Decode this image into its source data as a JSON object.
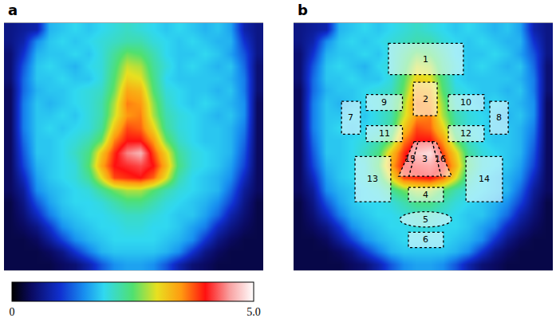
{
  "chart_data": {
    "type": "heatmap",
    "panels": [
      "a",
      "b"
    ],
    "tick_labels": false,
    "xlim": [
      0,
      100
    ],
    "ylim": [
      0,
      100
    ],
    "x": [
      2.5,
      7.5,
      12.5,
      17.5,
      22.5,
      27.5,
      32.5,
      37.5,
      42.5,
      47.5,
      52.5,
      57.5,
      62.5,
      67.5,
      72.5,
      77.5,
      82.5,
      87.5,
      92.5,
      97.5
    ],
    "y": [
      2.5,
      7.5,
      12.5,
      17.5,
      22.5,
      27.5,
      32.5,
      37.5,
      42.5,
      47.5,
      52.5,
      57.5,
      62.5,
      67.5,
      72.5,
      77.5,
      82.5,
      87.5,
      92.5,
      97.5
    ],
    "cells": [
      [
        0.6,
        0.7,
        0.8,
        1.7,
        1.8,
        1.9,
        1.8,
        1.9,
        2.0,
        2.1,
        2.0,
        1.9,
        1.8,
        1.9,
        1.8,
        1.7,
        1.8,
        1.6,
        0.8,
        0.6
      ],
      [
        0.6,
        0.8,
        1.5,
        1.8,
        1.9,
        1.8,
        1.9,
        2.0,
        2.1,
        2.2,
        2.2,
        2.0,
        1.9,
        1.8,
        1.9,
        1.8,
        1.7,
        1.7,
        1.0,
        0.6
      ],
      [
        0.5,
        1.0,
        1.7,
        1.8,
        1.8,
        1.9,
        1.8,
        2.0,
        2.3,
        2.6,
        2.5,
        2.2,
        1.9,
        1.8,
        1.8,
        1.9,
        1.8,
        1.6,
        1.2,
        0.6
      ],
      [
        0.5,
        1.2,
        1.8,
        1.9,
        1.8,
        1.7,
        1.9,
        2.0,
        2.4,
        2.9,
        2.8,
        2.3,
        2.0,
        1.8,
        1.9,
        1.8,
        1.7,
        1.8,
        1.3,
        0.5
      ],
      [
        0.5,
        1.3,
        1.8,
        1.8,
        1.9,
        1.8,
        1.8,
        2.0,
        2.5,
        3.1,
        3.0,
        2.4,
        1.9,
        1.8,
        1.8,
        1.8,
        1.8,
        1.7,
        1.4,
        0.5
      ],
      [
        0.4,
        1.3,
        1.7,
        1.8,
        1.8,
        1.9,
        2.0,
        2.1,
        2.6,
        3.4,
        3.3,
        2.5,
        2.0,
        1.9,
        1.8,
        1.8,
        1.7,
        1.8,
        1.4,
        0.5
      ],
      [
        0.4,
        1.4,
        1.8,
        1.7,
        1.8,
        1.9,
        2.0,
        2.2,
        2.8,
        3.6,
        3.5,
        2.7,
        2.1,
        1.9,
        1.8,
        1.9,
        1.8,
        1.7,
        1.5,
        0.4
      ],
      [
        0.4,
        1.4,
        1.8,
        1.8,
        1.9,
        1.8,
        2.0,
        2.2,
        2.9,
        3.5,
        3.6,
        2.8,
        2.2,
        2.0,
        1.9,
        1.8,
        1.7,
        1.8,
        1.5,
        0.4
      ],
      [
        0.4,
        1.4,
        1.8,
        1.9,
        1.8,
        1.9,
        2.0,
        2.3,
        3.2,
        3.8,
        3.7,
        3.1,
        2.3,
        2.0,
        1.9,
        1.8,
        1.8,
        1.7,
        1.4,
        0.4
      ],
      [
        0.4,
        1.3,
        1.8,
        1.8,
        1.9,
        2.0,
        2.2,
        2.6,
        3.6,
        4.0,
        4.0,
        3.5,
        2.6,
        2.1,
        1.9,
        1.8,
        1.8,
        1.7,
        1.3,
        0.4
      ],
      [
        0.4,
        1.2,
        1.8,
        1.8,
        1.9,
        2.1,
        2.4,
        3.2,
        3.9,
        4.4,
        4.6,
        3.8,
        3.1,
        2.3,
        2.0,
        1.9,
        1.8,
        1.7,
        1.2,
        0.4
      ],
      [
        0.4,
        1.1,
        1.7,
        1.8,
        1.9,
        2.0,
        2.5,
        3.4,
        4.0,
        4.1,
        4.2,
        4.0,
        3.3,
        2.4,
        2.0,
        1.9,
        1.8,
        1.6,
        1.1,
        0.4
      ],
      [
        0.4,
        0.9,
        1.6,
        1.8,
        1.9,
        2.0,
        2.3,
        3.0,
        3.8,
        3.9,
        4.0,
        3.7,
        3.0,
        2.2,
        1.9,
        1.8,
        1.7,
        1.5,
        0.9,
        0.4
      ],
      [
        0.4,
        0.7,
        1.5,
        1.7,
        1.8,
        1.9,
        2.0,
        2.3,
        2.6,
        2.8,
        2.8,
        2.5,
        2.2,
        2.0,
        1.9,
        1.8,
        1.7,
        1.3,
        0.7,
        0.4
      ],
      [
        0.3,
        0.6,
        1.2,
        1.6,
        1.8,
        1.9,
        1.9,
        2.0,
        2.2,
        2.4,
        2.4,
        2.2,
        2.0,
        1.9,
        1.8,
        1.7,
        1.5,
        1.1,
        0.6,
        0.3
      ],
      [
        0.3,
        0.5,
        0.9,
        1.4,
        1.7,
        1.8,
        1.9,
        1.9,
        2.0,
        2.1,
        2.1,
        2.0,
        1.9,
        1.8,
        1.8,
        1.6,
        1.3,
        0.8,
        0.5,
        0.3
      ],
      [
        0.3,
        0.4,
        0.6,
        1.0,
        1.5,
        1.7,
        1.8,
        1.9,
        1.9,
        2.0,
        2.0,
        1.9,
        1.9,
        1.8,
        1.6,
        1.4,
        0.9,
        0.6,
        0.4,
        0.3
      ],
      [
        0.3,
        0.3,
        0.4,
        0.7,
        1.1,
        1.5,
        1.7,
        1.8,
        1.9,
        1.9,
        1.9,
        1.9,
        1.8,
        1.7,
        1.5,
        1.0,
        0.6,
        0.4,
        0.3,
        0.3
      ],
      [
        0.3,
        0.3,
        0.3,
        0.4,
        0.6,
        1.0,
        1.4,
        1.7,
        1.8,
        1.8,
        1.8,
        1.8,
        1.7,
        1.5,
        1.0,
        0.6,
        0.4,
        0.3,
        0.3,
        0.3
      ],
      [
        0.3,
        0.3,
        0.3,
        0.3,
        0.4,
        0.5,
        0.8,
        1.2,
        1.5,
        1.6,
        1.6,
        1.5,
        1.2,
        0.8,
        0.5,
        0.4,
        0.3,
        0.3,
        0.3,
        0.3
      ]
    ],
    "colorbar": {
      "range": [
        0,
        5
      ],
      "ticks": [
        0,
        {
          "value": 5,
          "label": "5.0"
        }
      ]
    },
    "regions": [
      {
        "label": "1",
        "shape": "rect",
        "x": [
          36.6,
          65.5
        ],
        "y": [
          8.3,
          20.9
        ]
      },
      {
        "label": "2",
        "shape": "rect",
        "x": [
          46.2,
          55.4
        ],
        "y": [
          24.0,
          37.5
        ]
      },
      {
        "label": "3",
        "shape": "polygon",
        "points": [
          [
            48.0,
            48.0
          ],
          [
            53.5,
            48.0
          ],
          [
            57.0,
            62.0
          ],
          [
            44.5,
            62.0
          ]
        ]
      },
      {
        "label": "4",
        "shape": "rect",
        "x": [
          44.3,
          57.8
        ],
        "y": [
          66.5,
          72.3
        ]
      },
      {
        "label": "5",
        "shape": "ellipse",
        "x": [
          41.0,
          61.0
        ],
        "y": [
          76.3,
          82.5
        ]
      },
      {
        "label": "6",
        "shape": "rect",
        "x": [
          44.3,
          57.8
        ],
        "y": [
          84.6,
          90.8
        ]
      },
      {
        "label": "7",
        "shape": "rect",
        "x": [
          18.5,
          25.8
        ],
        "y": [
          31.7,
          45.0
        ]
      },
      {
        "label": "8",
        "shape": "rect",
        "x": [
          75.7,
          82.8
        ],
        "y": [
          31.7,
          45.0
        ]
      },
      {
        "label": "9",
        "shape": "rect",
        "x": [
          28.0,
          42.0
        ],
        "y": [
          29.0,
          35.4
        ]
      },
      {
        "label": "10",
        "shape": "rect",
        "x": [
          59.7,
          73.5
        ],
        "y": [
          29.0,
          35.4
        ]
      },
      {
        "label": "11",
        "shape": "rect",
        "x": [
          28.0,
          42.0
        ],
        "y": [
          41.5,
          48.0
        ]
      },
      {
        "label": "12",
        "shape": "rect",
        "x": [
          59.7,
          73.5
        ],
        "y": [
          41.5,
          48.0
        ]
      },
      {
        "label": "13",
        "shape": "rect",
        "x": [
          23.7,
          37.5
        ],
        "y": [
          54.0,
          72.3
        ]
      },
      {
        "label": "14",
        "shape": "rect",
        "x": [
          66.5,
          80.6
        ],
        "y": [
          54.0,
          72.3
        ]
      },
      {
        "label": "15",
        "shape": "polygon",
        "points": [
          [
            46.5,
            48.0
          ],
          [
            48.0,
            48.0
          ],
          [
            44.5,
            62.0
          ],
          [
            40.5,
            62.0
          ]
        ]
      },
      {
        "label": "16",
        "shape": "polygon",
        "points": [
          [
            53.5,
            48.0
          ],
          [
            55.0,
            48.0
          ],
          [
            61.0,
            62.0
          ],
          [
            57.0,
            62.0
          ]
        ]
      }
    ]
  }
}
